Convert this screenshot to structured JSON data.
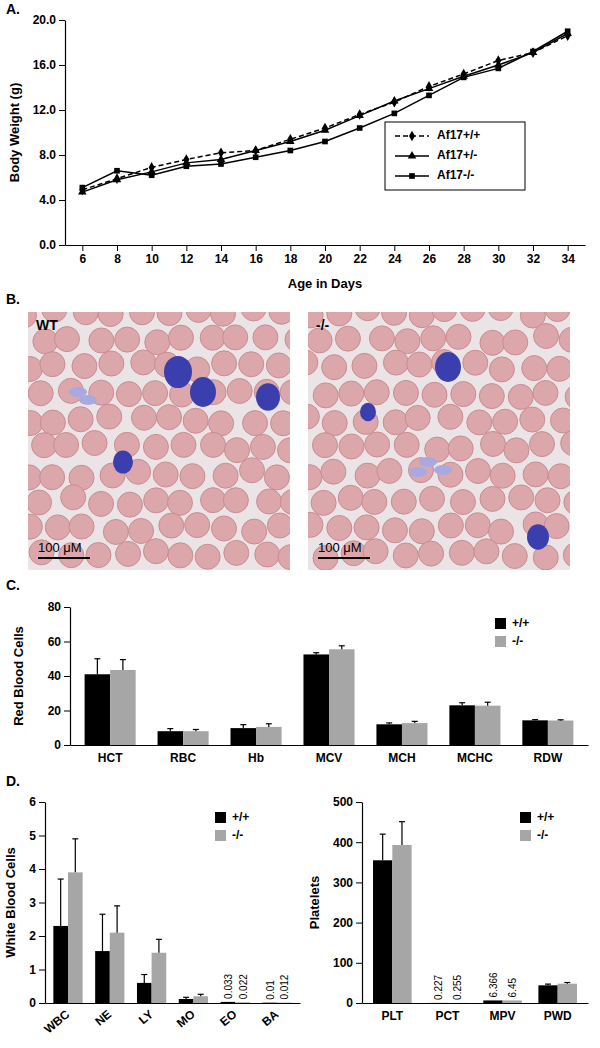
{
  "chart_data": [
    {
      "type": "line",
      "title": "A.",
      "x_label": "Age in Days",
      "y_label": "Body Weight (g)",
      "x": [
        6,
        8,
        10,
        12,
        14,
        16,
        18,
        20,
        22,
        24,
        26,
        28,
        30,
        32,
        34
      ],
      "xlim": [
        5,
        35
      ],
      "xticks": [
        6,
        8,
        10,
        12,
        14,
        16,
        18,
        20,
        22,
        24,
        26,
        28,
        30,
        32,
        34
      ],
      "ylim": [
        0,
        20
      ],
      "yticks": [
        {
          "value": 0,
          "label": "0.0"
        },
        {
          "value": 4,
          "label": "4.0"
        },
        {
          "value": 8,
          "label": "8.0"
        },
        {
          "value": 12,
          "label": "12.0"
        },
        {
          "value": 16,
          "label": "16.0"
        },
        {
          "value": 20,
          "label": "20.0"
        }
      ],
      "legend": "right",
      "series": [
        {
          "name": "Af17+/+",
          "color": "#000000",
          "line_style": "dashed",
          "marker": "diamond",
          "values": [
            4.9,
            5.9,
            6.9,
            7.6,
            8.2,
            8.4,
            9.4,
            10.4,
            11.6,
            12.7,
            14.1,
            15.2,
            16.4,
            17.1,
            18.6
          ]
        },
        {
          "name": "Af17+/-",
          "color": "#000000",
          "line_style": "solid",
          "marker": "triangle",
          "values": [
            4.7,
            5.8,
            6.5,
            7.3,
            7.6,
            8.4,
            9.2,
            10.2,
            11.5,
            12.8,
            13.9,
            15.0,
            16.0,
            17.1,
            18.8
          ]
        },
        {
          "name": "Af17-/-",
          "color": "#000000",
          "line_style": "solid",
          "marker": "square",
          "values": [
            5.1,
            6.6,
            6.2,
            7.0,
            7.2,
            7.8,
            8.4,
            9.2,
            10.4,
            11.7,
            13.3,
            14.9,
            15.7,
            17.2,
            19.0
          ]
        }
      ]
    },
    {
      "type": "bar",
      "title": "C.",
      "y_label": "Red Blood Cells",
      "categories": [
        "HCT",
        "RBC",
        "Hb",
        "MCV",
        "MCH",
        "MCHC",
        "RDW"
      ],
      "ylim": [
        0,
        80
      ],
      "yticks": [
        0,
        20,
        40,
        60,
        80
      ],
      "legend": "upper right",
      "series": [
        {
          "name": "+/+",
          "color": "#000000",
          "values": [
            41,
            8,
            9.8,
            52.5,
            12,
            23,
            14.3
          ],
          "errors": [
            9,
            1.5,
            2,
            1,
            0.8,
            1.5,
            0.4
          ]
        },
        {
          "name": "-/-",
          "color": "#a6a6a6",
          "values": [
            43.5,
            8,
            10.5,
            55.5,
            12.7,
            22.8,
            14.2
          ],
          "errors": [
            6,
            1,
            1.8,
            2,
            1,
            2,
            0.4
          ]
        }
      ]
    },
    {
      "type": "bar",
      "title": "D.",
      "y_label": "White Blood Cells",
      "categories": [
        "WBC",
        "NE",
        "LY",
        "MO",
        "EO",
        "BA"
      ],
      "ylim": [
        0,
        6
      ],
      "yticks": [
        0,
        1,
        2,
        3,
        4,
        5,
        6
      ],
      "legend": "upper right",
      "data_labels": true,
      "series": [
        {
          "name": "+/+",
          "color": "#000000",
          "values": [
            2.3,
            1.55,
            0.6,
            0.12,
            0.033,
            0.01
          ],
          "errors": [
            1.4,
            1.1,
            0.25,
            0.05,
            null,
            null
          ],
          "value_labels": [
            null,
            null,
            null,
            null,
            "0.033",
            "0.01"
          ]
        },
        {
          "name": "-/-",
          "color": "#a6a6a6",
          "values": [
            3.9,
            2.1,
            1.5,
            0.2,
            0.022,
            0.012
          ],
          "errors": [
            1.0,
            0.8,
            0.4,
            0.06,
            null,
            null
          ],
          "value_labels": [
            null,
            null,
            null,
            null,
            "0.022",
            "0.012"
          ]
        }
      ]
    },
    {
      "type": "bar",
      "y_label": "Platelets",
      "categories": [
        "PLT",
        "PCT",
        "MPV",
        "PWD"
      ],
      "ylim": [
        0,
        500
      ],
      "yticks": [
        0,
        100,
        200,
        300,
        400,
        500
      ],
      "legend": "upper right",
      "data_labels": true,
      "series": [
        {
          "name": "+/+",
          "color": "#000000",
          "values": [
            355,
            0.227,
            6.366,
            44
          ],
          "errors": [
            65,
            null,
            null,
            3
          ],
          "value_labels": [
            null,
            "0.227",
            "6.366",
            null
          ]
        },
        {
          "name": "-/-",
          "color": "#a6a6a6",
          "values": [
            393,
            0.255,
            6.45,
            48
          ],
          "errors": [
            58,
            null,
            null,
            3
          ],
          "value_labels": [
            null,
            "0.255",
            "6.45",
            null
          ]
        }
      ]
    }
  ],
  "micrographs": {
    "title": "B.",
    "panels": [
      {
        "label": "WT",
        "scale_bar": "100 μM"
      },
      {
        "label": "-/-",
        "scale_bar": "100 μM"
      }
    ]
  }
}
